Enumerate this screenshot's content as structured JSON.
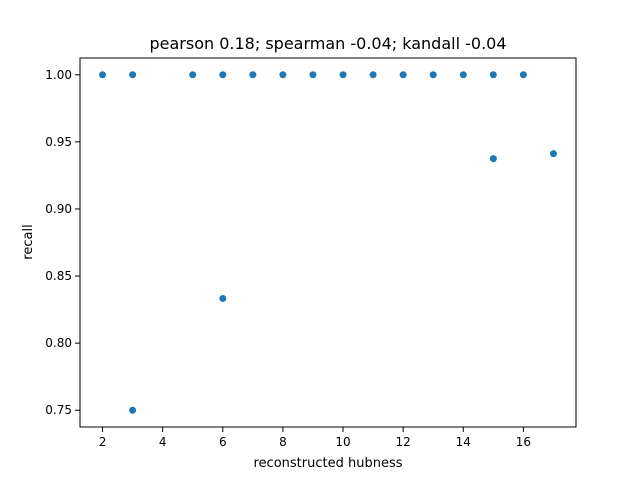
{
  "chart_data": {
    "type": "scatter",
    "title": "pearson 0.18; spearman -0.04; kandall -0.04",
    "xlabel": "reconstructed hubness",
    "ylabel": "recall",
    "xlim": [
      1.25,
      17.75
    ],
    "ylim": [
      0.7375,
      1.0125
    ],
    "xticks": [
      2,
      4,
      6,
      8,
      10,
      12,
      14,
      16
    ],
    "yticks": [
      0.75,
      0.8,
      0.85,
      0.9,
      0.95,
      1.0
    ],
    "xtick_labels": [
      "2",
      "4",
      "6",
      "8",
      "10",
      "12",
      "14",
      "16"
    ],
    "ytick_labels": [
      "0.75",
      "0.80",
      "0.85",
      "0.90",
      "0.95",
      "1.00"
    ],
    "grid": false,
    "color": "#1f77b4",
    "points": [
      {
        "x": 2,
        "y": 1.0
      },
      {
        "x": 3,
        "y": 1.0
      },
      {
        "x": 5,
        "y": 1.0
      },
      {
        "x": 6,
        "y": 1.0
      },
      {
        "x": 7,
        "y": 1.0
      },
      {
        "x": 8,
        "y": 1.0
      },
      {
        "x": 9,
        "y": 1.0
      },
      {
        "x": 10,
        "y": 1.0
      },
      {
        "x": 11,
        "y": 1.0
      },
      {
        "x": 12,
        "y": 1.0
      },
      {
        "x": 13,
        "y": 1.0
      },
      {
        "x": 14,
        "y": 1.0
      },
      {
        "x": 15,
        "y": 1.0
      },
      {
        "x": 16,
        "y": 1.0
      },
      {
        "x": 17,
        "y": 0.9412
      },
      {
        "x": 15,
        "y": 0.9375
      },
      {
        "x": 6,
        "y": 0.8333
      },
      {
        "x": 3,
        "y": 0.75
      }
    ]
  }
}
